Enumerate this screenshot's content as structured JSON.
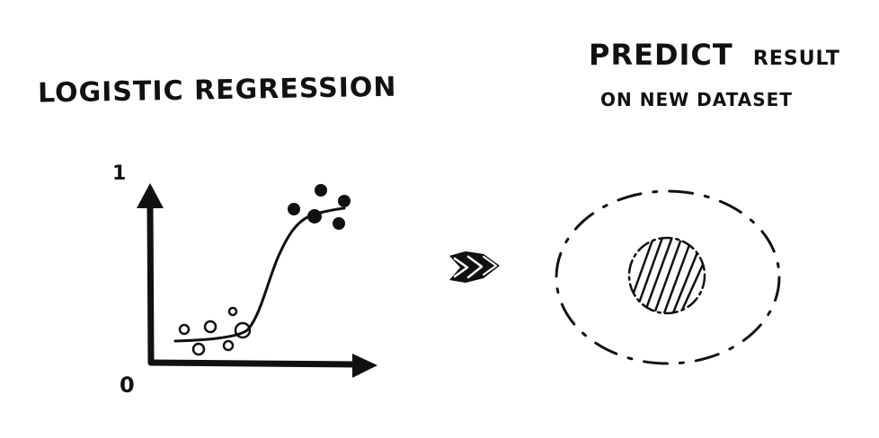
{
  "left_title": "LOGISTIC REGRESSION",
  "right_title": {
    "emphasis": "PREDICT",
    "rest_line1": "RESULT",
    "line2": "ON NEW DATASET"
  },
  "axis_labels": {
    "y_top": "1",
    "origin": "0"
  },
  "colors": {
    "ink": "#111111",
    "background": "#ffffff"
  },
  "icons": {
    "transition": "double-chevron-arrow",
    "prediction": "hatched-circle-inside-dashed-ellipse"
  }
}
